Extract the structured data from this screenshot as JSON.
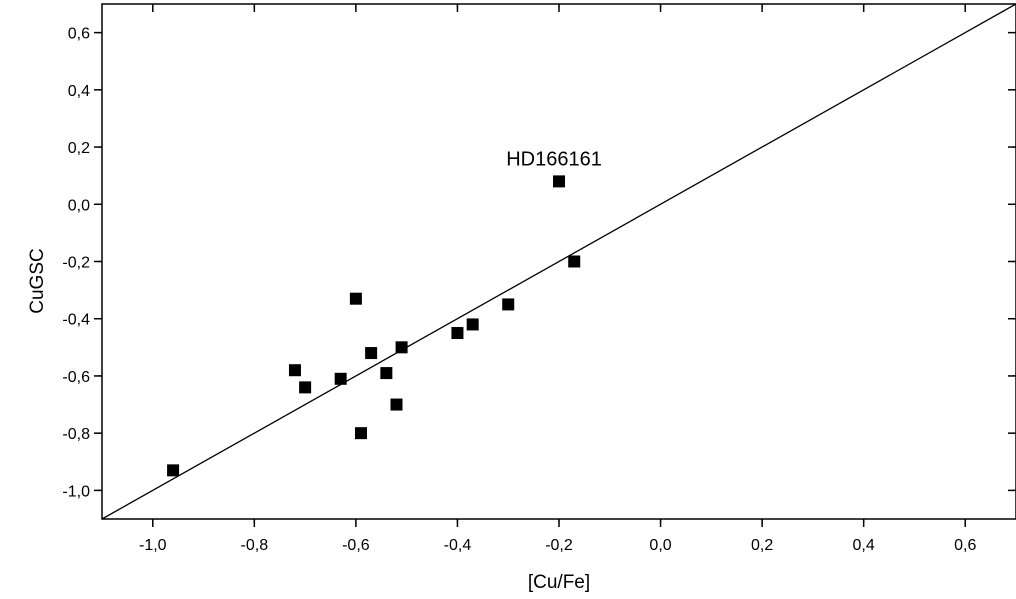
{
  "chart_data": {
    "type": "scatter",
    "xlabel": "[Cu/Fe]",
    "ylabel": "CuGSC",
    "xlim": [
      -1.1,
      0.7
    ],
    "ylim": [
      -1.1,
      0.7
    ],
    "x_ticks": [
      -1.0,
      -0.8,
      -0.6,
      -0.4,
      -0.2,
      0.0,
      0.2,
      0.4,
      0.6
    ],
    "x_tick_labels": [
      "-1,0",
      "-0,8",
      "-0,6",
      "-0,4",
      "-0,2",
      "0,0",
      "0,2",
      "0,4",
      "0,6"
    ],
    "y_ticks": [
      -1.0,
      -0.8,
      -0.6,
      -0.4,
      -0.2,
      0.0,
      0.2,
      0.4,
      0.6
    ],
    "y_tick_labels": [
      "-1,0",
      "-0,8",
      "-0,6",
      "-0,4",
      "-0,2",
      "0,0",
      "0,2",
      "0,4",
      "0,6"
    ],
    "grid": false,
    "points": [
      {
        "x": -0.96,
        "y": -0.93
      },
      {
        "x": -0.72,
        "y": -0.58
      },
      {
        "x": -0.7,
        "y": -0.64
      },
      {
        "x": -0.63,
        "y": -0.61
      },
      {
        "x": -0.6,
        "y": -0.33
      },
      {
        "x": -0.59,
        "y": -0.8
      },
      {
        "x": -0.57,
        "y": -0.52
      },
      {
        "x": -0.54,
        "y": -0.59
      },
      {
        "x": -0.52,
        "y": -0.7
      },
      {
        "x": -0.51,
        "y": -0.5
      },
      {
        "x": -0.4,
        "y": -0.45
      },
      {
        "x": -0.37,
        "y": -0.42
      },
      {
        "x": -0.3,
        "y": -0.35
      },
      {
        "x": -0.2,
        "y": 0.08
      },
      {
        "x": -0.17,
        "y": -0.2
      }
    ],
    "fit_line": {
      "slope": 1.0,
      "intercept": 0.0
    },
    "annotations": [
      {
        "text": "HD166161",
        "x": -0.2,
        "y": 0.08
      }
    ]
  }
}
